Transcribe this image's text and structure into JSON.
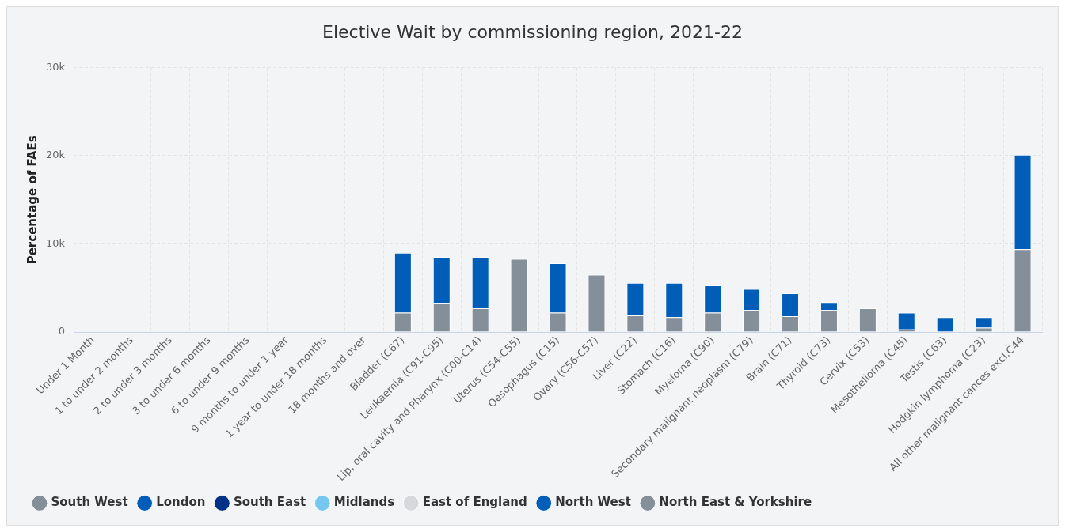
{
  "chart_data": {
    "type": "bar",
    "title": "Elective Wait by commissioning region, 2021-22",
    "ylabel": "Percentage of FAEs",
    "categories": [
      "Under 1 Month",
      "1 to under 2 months",
      "2 to under 3 months",
      "3 to under 6 months",
      "6 to under 9 months",
      "9 months to under 1 year",
      "1 year to under 18 months",
      "18 months and over",
      "Bladder (C67)",
      "Leukaemia (C91-C95)",
      "Lip, oral cavity and Pharynx (C00-C14)",
      "Uterus (C54-C55)",
      "Oesophagus (C15)",
      "Ovary (C56-C57)",
      "Liver (C22)",
      "Stomach (C16)",
      "Myeloma (C90)",
      "Secondary malignant neoplasm (C79)",
      "Brain (C71)",
      "Thyroid (C73)",
      "Cervix (C53)",
      "Mesothelioma (C45)",
      "Testis (C63)",
      "Hodgkin lymphoma (C23)",
      "All other malignant cances excl.C44"
    ],
    "series": [
      {
        "name": "South West",
        "color": "#848f99",
        "values": [
          null,
          null,
          null,
          null,
          null,
          null,
          null,
          null,
          2200,
          3300,
          2700,
          8300,
          2200,
          6500,
          1900,
          1700,
          2200,
          2500,
          1800,
          2500,
          2700,
          300,
          null,
          500,
          9400
        ]
      },
      {
        "name": "London",
        "color": "#005eb8",
        "values": [
          null,
          null,
          null,
          null,
          null,
          null,
          null,
          null,
          6800,
          5200,
          5800,
          null,
          5600,
          null,
          3700,
          3900,
          3100,
          2400,
          2600,
          900,
          null,
          1900,
          1700,
          1200,
          10700
        ]
      },
      {
        "name": "South East",
        "color": "#003087",
        "values": [
          null,
          null,
          null,
          null,
          null,
          null,
          null,
          null,
          null,
          null,
          null,
          null,
          null,
          null,
          null,
          null,
          null,
          null,
          null,
          null,
          null,
          null,
          null,
          null,
          null
        ]
      },
      {
        "name": "Midlands",
        "color": "#76c7f0",
        "values": [
          null,
          null,
          null,
          null,
          null,
          null,
          null,
          null,
          null,
          null,
          null,
          null,
          null,
          null,
          null,
          null,
          null,
          null,
          null,
          null,
          null,
          null,
          null,
          null,
          null
        ]
      },
      {
        "name": "East of England",
        "color": "#d5d9dc",
        "values": [
          null,
          null,
          null,
          null,
          null,
          null,
          null,
          null,
          null,
          null,
          null,
          null,
          null,
          null,
          null,
          null,
          null,
          null,
          null,
          null,
          null,
          null,
          null,
          null,
          null
        ]
      },
      {
        "name": "North West",
        "color": "#005eb8",
        "values": [
          null,
          null,
          null,
          null,
          null,
          null,
          null,
          null,
          null,
          null,
          null,
          null,
          null,
          null,
          null,
          null,
          null,
          null,
          null,
          null,
          null,
          null,
          null,
          null,
          null
        ]
      },
      {
        "name": "North East & Yorkshire",
        "color": "#848f99",
        "values": [
          null,
          null,
          null,
          null,
          null,
          null,
          null,
          null,
          null,
          null,
          null,
          null,
          null,
          null,
          null,
          null,
          null,
          null,
          null,
          null,
          null,
          null,
          null,
          null,
          null
        ]
      }
    ],
    "stacked": true,
    "ylim": [
      0,
      30000
    ],
    "yticks": [
      0,
      {
        "value": 10000,
        "label": "10k"
      },
      {
        "value": 20000,
        "label": "20k"
      },
      {
        "value": 30000,
        "label": "30k"
      }
    ],
    "grid": true,
    "legend": "bottom"
  }
}
